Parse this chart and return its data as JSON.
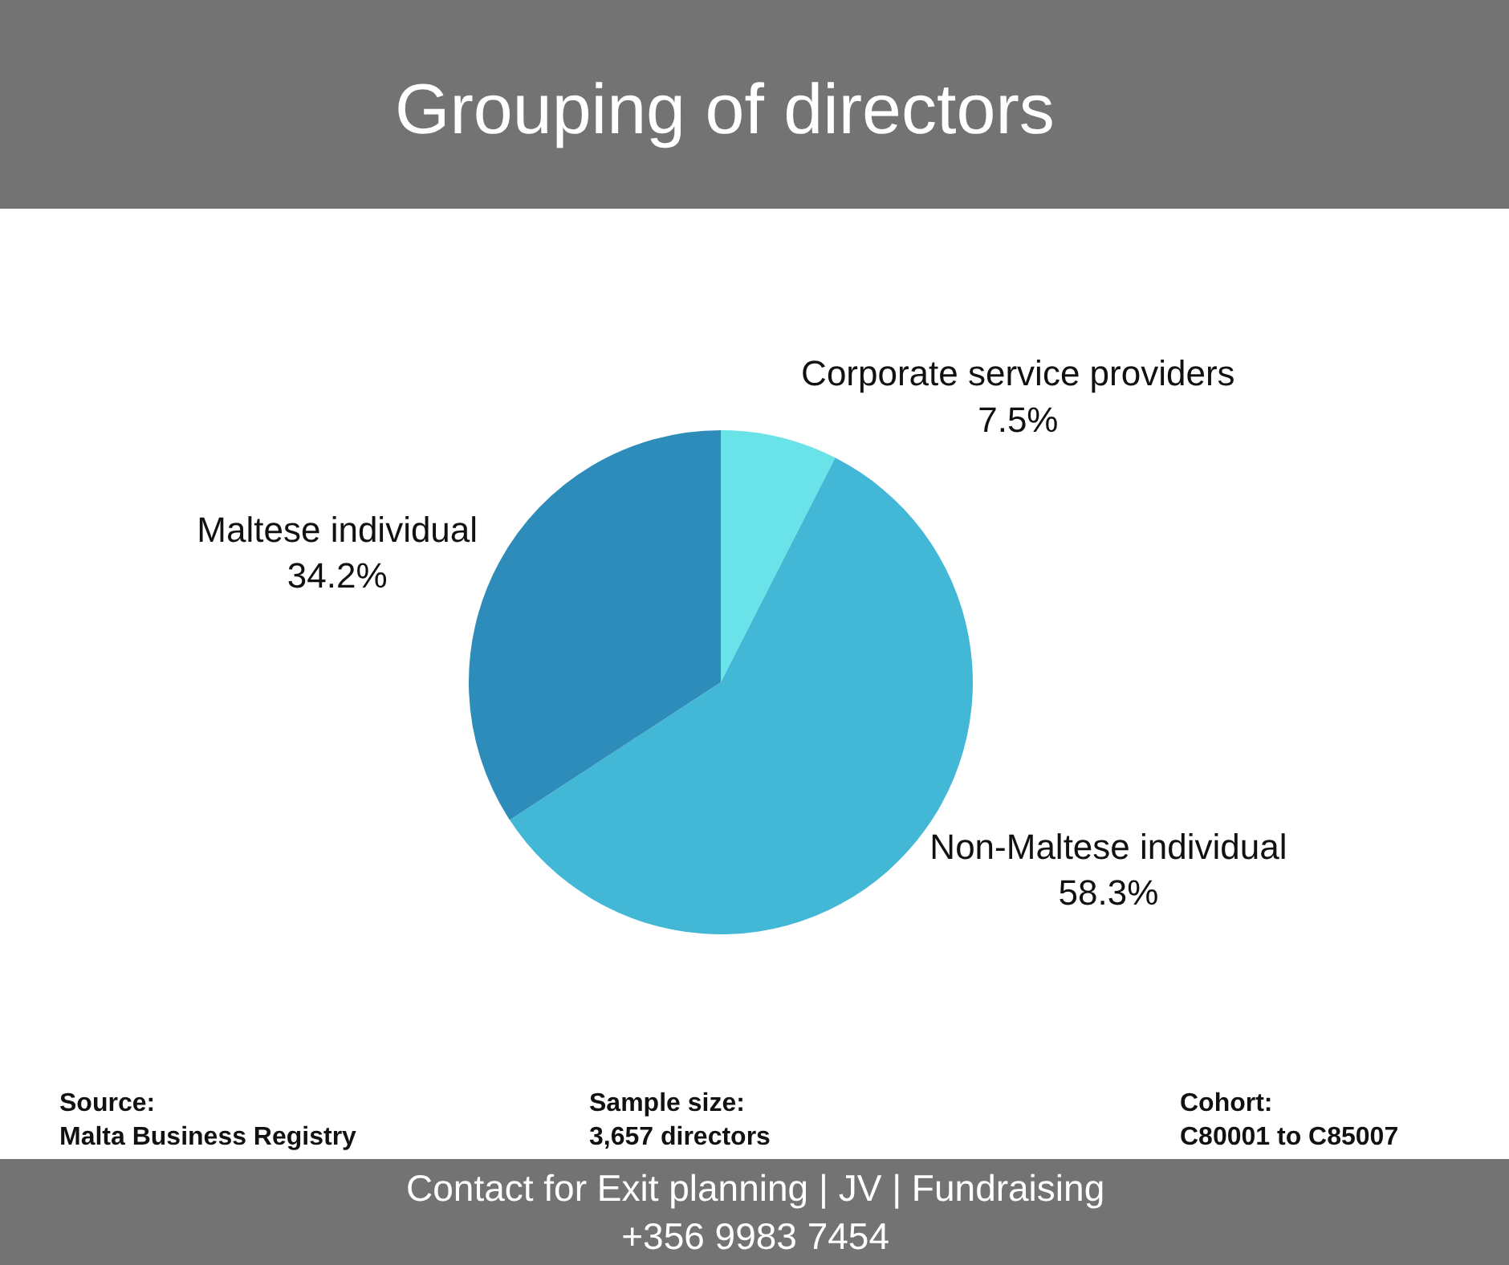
{
  "chart_data": {
    "type": "pie",
    "title": "Grouping of directors",
    "categories": [
      "Corporate service providers",
      "Non-Maltese individual",
      "Maltese individual"
    ],
    "values": [
      7.5,
      58.3,
      34.2
    ],
    "colors": [
      "#6ae3e8",
      "#42b8d6",
      "#2e8cba"
    ],
    "value_labels": [
      "7.5%",
      "58.3%",
      "34.2%"
    ],
    "legend": false,
    "annotations": [
      "Source:\nMalta Business Registry",
      "Sample size:\n3,657 directors",
      "Cohort:\nC80001 to C85007",
      "Contact for Exit planning | JV | Fundraising\n+356 9983 7454"
    ]
  }
}
